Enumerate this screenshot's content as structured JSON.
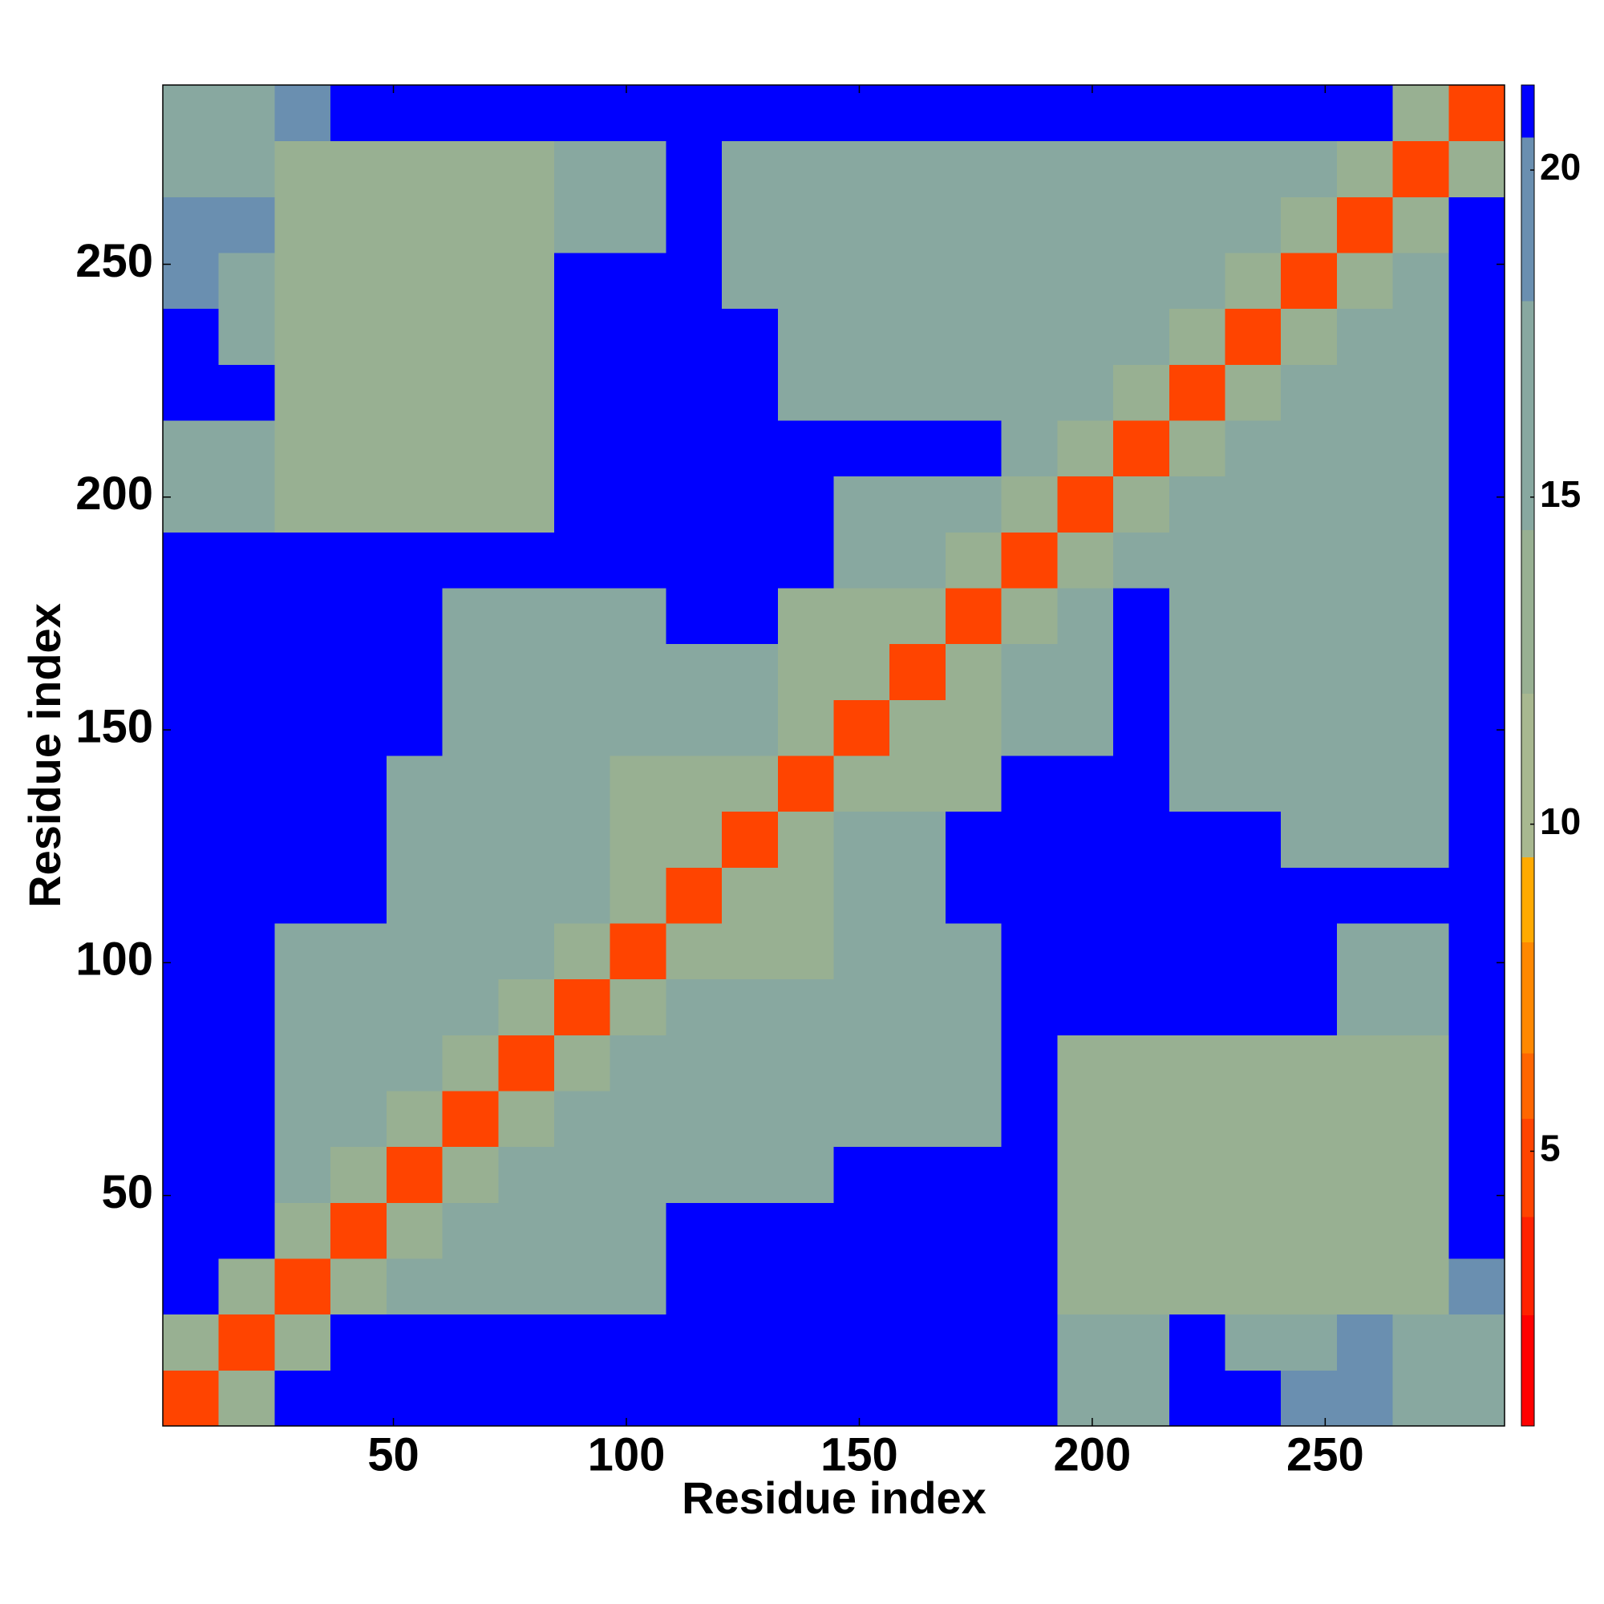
{
  "chart_data": {
    "type": "heatmap",
    "xlabel": "Residue index",
    "ylabel": "Residue index",
    "x": [
      6.5,
      18.5,
      30.5,
      42.5,
      54.5,
      66.5,
      78.5,
      90.5,
      102.5,
      114.5,
      126.5,
      138.5,
      150.5,
      162.5,
      174.5,
      186.5,
      198.5,
      210.5,
      222.5,
      234.5,
      246.5,
      258.5,
      270.5,
      282.5
    ],
    "y": [
      6.5,
      18.5,
      30.5,
      42.5,
      54.5,
      66.5,
      78.5,
      90.5,
      102.5,
      114.5,
      126.5,
      138.5,
      150.5,
      162.5,
      174.5,
      186.5,
      198.5,
      210.5,
      222.5,
      234.5,
      246.5,
      258.5,
      270.5,
      282.5
    ],
    "z": [
      [
        4,
        13,
        21,
        21,
        21,
        21,
        21,
        21,
        21,
        21,
        21,
        21,
        21,
        21,
        21,
        21,
        16,
        16,
        21,
        21,
        18,
        18,
        17,
        17
      ],
      [
        13,
        4,
        13,
        21,
        21,
        21,
        21,
        21,
        21,
        21,
        21,
        21,
        21,
        21,
        21,
        21,
        16,
        16,
        21,
        17,
        17,
        18,
        17,
        17
      ],
      [
        21,
        13,
        4,
        13,
        15,
        15,
        15,
        15,
        15,
        21,
        21,
        21,
        21,
        21,
        21,
        21,
        14,
        14,
        14,
        14,
        14,
        14,
        14,
        18
      ],
      [
        21,
        21,
        13,
        4,
        13,
        15,
        15,
        15,
        15,
        21,
        21,
        21,
        21,
        21,
        21,
        21,
        14,
        14,
        14,
        14,
        14,
        14,
        14,
        21
      ],
      [
        21,
        21,
        15,
        13,
        4,
        13,
        15,
        15,
        15,
        15,
        15,
        15,
        21,
        21,
        21,
        21,
        14,
        14,
        14,
        14,
        14,
        14,
        14,
        21
      ],
      [
        21,
        21,
        15,
        15,
        13,
        4,
        13,
        15,
        15,
        15,
        15,
        15,
        16,
        16,
        17,
        21,
        14,
        14,
        14,
        14,
        14,
        14,
        14,
        21
      ],
      [
        21,
        21,
        15,
        15,
        15,
        13,
        4,
        13,
        15,
        15,
        15,
        15,
        16,
        16,
        17,
        21,
        14,
        14,
        14,
        14,
        14,
        14,
        14,
        21
      ],
      [
        21,
        21,
        15,
        15,
        15,
        15,
        13,
        4,
        13,
        15,
        15,
        15,
        16,
        16,
        17,
        21,
        21,
        21,
        21,
        21,
        21,
        17,
        17,
        21
      ],
      [
        21,
        21,
        15,
        15,
        15,
        15,
        15,
        13,
        4,
        13,
        14,
        14,
        15,
        15,
        17,
        21,
        21,
        21,
        21,
        21,
        21,
        17,
        17,
        21
      ],
      [
        21,
        21,
        21,
        21,
        15,
        15,
        15,
        15,
        13,
        4,
        13,
        14,
        15,
        15,
        21,
        21,
        21,
        21,
        21,
        21,
        21,
        21,
        21,
        21
      ],
      [
        21,
        21,
        21,
        21,
        15,
        15,
        15,
        15,
        14,
        13,
        4,
        13,
        15,
        15,
        21,
        21,
        21,
        21,
        21,
        21,
        17,
        17,
        17,
        21
      ],
      [
        21,
        21,
        21,
        21,
        15,
        15,
        15,
        15,
        14,
        14,
        13,
        4,
        13,
        14,
        14,
        21,
        21,
        21,
        16,
        16,
        16,
        16,
        16,
        21
      ],
      [
        21,
        21,
        21,
        21,
        21,
        16,
        16,
        16,
        15,
        15,
        15,
        13,
        4,
        13,
        14,
        15,
        15,
        21,
        16,
        16,
        16,
        16,
        16,
        21
      ],
      [
        21,
        21,
        21,
        21,
        21,
        16,
        16,
        16,
        15,
        15,
        15,
        14,
        13,
        4,
        13,
        15,
        15,
        21,
        16,
        16,
        16,
        16,
        16,
        21
      ],
      [
        21,
        21,
        21,
        21,
        21,
        17,
        17,
        17,
        17,
        21,
        21,
        14,
        14,
        13,
        4,
        13,
        15,
        21,
        16,
        16,
        16,
        16,
        16,
        21
      ],
      [
        21,
        21,
        21,
        21,
        21,
        21,
        21,
        21,
        21,
        21,
        21,
        21,
        15,
        15,
        13,
        4,
        13,
        15,
        15,
        15,
        15,
        15,
        15,
        21
      ],
      [
        16,
        16,
        14,
        14,
        14,
        14,
        14,
        21,
        21,
        21,
        21,
        21,
        15,
        15,
        15,
        13,
        4,
        13,
        15,
        15,
        15,
        15,
        15,
        21
      ],
      [
        16,
        16,
        14,
        14,
        14,
        14,
        14,
        21,
        21,
        21,
        21,
        21,
        21,
        21,
        21,
        15,
        13,
        4,
        13,
        15,
        15,
        15,
        15,
        21
      ],
      [
        21,
        21,
        14,
        14,
        14,
        14,
        14,
        21,
        21,
        21,
        21,
        16,
        16,
        16,
        16,
        15,
        15,
        13,
        4,
        13,
        15,
        15,
        15,
        21
      ],
      [
        21,
        17,
        14,
        14,
        14,
        14,
        14,
        21,
        21,
        21,
        21,
        16,
        16,
        16,
        16,
        15,
        15,
        15,
        13,
        4,
        13,
        15,
        15,
        21
      ],
      [
        18,
        17,
        14,
        14,
        14,
        14,
        14,
        21,
        21,
        21,
        17,
        16,
        16,
        16,
        16,
        15,
        15,
        15,
        15,
        13,
        4,
        13,
        15,
        21
      ],
      [
        18,
        18,
        14,
        14,
        14,
        14,
        14,
        17,
        17,
        21,
        17,
        16,
        16,
        16,
        16,
        15,
        15,
        15,
        15,
        15,
        13,
        4,
        13,
        21
      ],
      [
        17,
        17,
        14,
        14,
        14,
        14,
        14,
        17,
        17,
        21,
        17,
        16,
        16,
        16,
        16,
        15,
        15,
        15,
        15,
        15,
        15,
        13,
        4,
        13
      ],
      [
        17,
        17,
        18,
        21,
        21,
        21,
        21,
        21,
        21,
        21,
        21,
        21,
        21,
        21,
        21,
        21,
        21,
        21,
        21,
        21,
        21,
        21,
        13,
        4
      ]
    ],
    "xlim": [
      0.5,
      288.5
    ],
    "ylim": [
      0.5,
      288.5
    ],
    "xticks": [
      50,
      100,
      150,
      200,
      250
    ],
    "yticks": [
      50,
      100,
      150,
      200,
      250
    ],
    "zlim": [
      0.8,
      21.3
    ],
    "zticks": [
      5,
      10,
      15,
      20
    ],
    "colorscale": [
      [
        0.8,
        "#ff0000"
      ],
      [
        2.5,
        "#ff2200"
      ],
      [
        4,
        "#ff4400"
      ],
      [
        5.5,
        "#ff6600"
      ],
      [
        6.5,
        "#ff8800"
      ],
      [
        8.2,
        "#ffaa00"
      ],
      [
        9.5,
        "#a8b890"
      ],
      [
        12,
        "#98b092"
      ],
      [
        14.5,
        "#88a8a0"
      ],
      [
        18,
        "#6a8fb0"
      ],
      [
        20.5,
        "#0000ff"
      ]
    ]
  }
}
